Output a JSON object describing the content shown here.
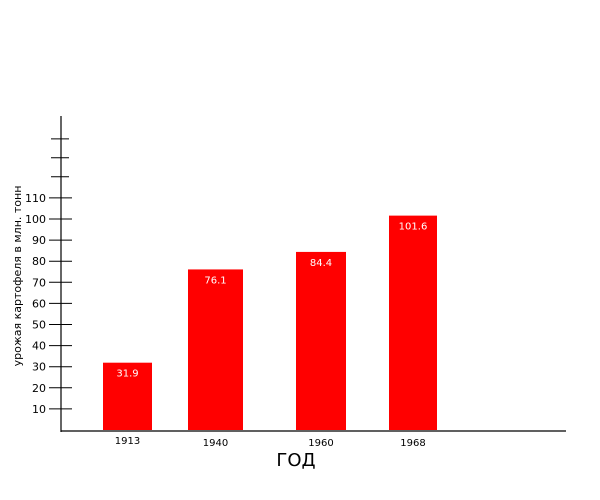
{
  "chart_data": {
    "type": "bar",
    "categories": [
      "1913",
      "1940",
      "1960",
      "1968"
    ],
    "values": [
      31.9,
      76.1,
      84.4,
      101.6
    ],
    "value_labels": [
      "31.9",
      "76.1",
      "84.4",
      "101.6"
    ],
    "title": "",
    "xlabel": "ГОД",
    "ylabel": "урожая картофеля в млн. тонн",
    "y_ticks": [
      10,
      20,
      30,
      40,
      50,
      60,
      70,
      80,
      90,
      100,
      110
    ],
    "ylim": [
      0,
      135
    ],
    "grid": false,
    "bar_color": "#ff0000",
    "label_color": "#ffffff"
  }
}
